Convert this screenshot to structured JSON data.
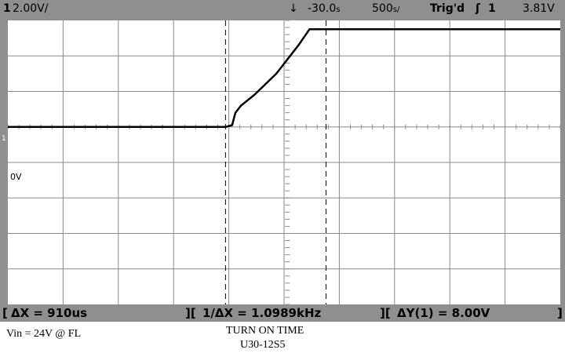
{
  "header": {
    "channel_number": "1",
    "volts_per_div": "2.00V/",
    "time_offset": "-30.0",
    "offset_unit": "s",
    "time_per_div": "500",
    "time_unit": "s/",
    "trigger_status": "Trig'd",
    "trigger_channel": "1",
    "trigger_level": "3.81V"
  },
  "markers": {
    "channel_marker": "1",
    "zero_label": "0V"
  },
  "measurements": {
    "delta_x": "ΔX = 910us",
    "inverse_delta_x": "1/ΔX = 1.0989kHz",
    "delta_y": "ΔY(1) = 8.00V"
  },
  "captions": {
    "condition": "Vin = 24V @ FL",
    "title": "TURN ON TIME",
    "model": "U30-12S5"
  },
  "chart_data": {
    "type": "line",
    "title": "TURN ON TIME",
    "subtitle": "U30-12S5",
    "xlabel": "",
    "ylabel": "",
    "xlim": [
      -2530,
      2470
    ],
    "ylim": [
      -10,
      6
    ],
    "grid": true,
    "x_unit": "us",
    "y_unit": "V",
    "series": [
      {
        "channel": "1",
        "x": [
          -2530,
          -2000,
          -1500,
          -1000,
          -560,
          -500,
          -470,
          -420,
          -300,
          -100,
          100,
          200,
          300,
          350,
          500,
          1000,
          1500,
          2000,
          2470
        ],
        "y": [
          0.0,
          0.0,
          0.0,
          0.0,
          0.0,
          0.1,
          0.8,
          1.2,
          1.8,
          3.0,
          4.6,
          5.5,
          5.5,
          5.5,
          5.5,
          5.5,
          5.5,
          5.5,
          5.5
        ]
      }
    ],
    "cursors": {
      "x1": -560,
      "x2": 350
    },
    "colors": {
      "trace": "#000000",
      "grid": "#8a8a8a",
      "frame": "#8f8f8f",
      "background": "#ffffff"
    }
  }
}
